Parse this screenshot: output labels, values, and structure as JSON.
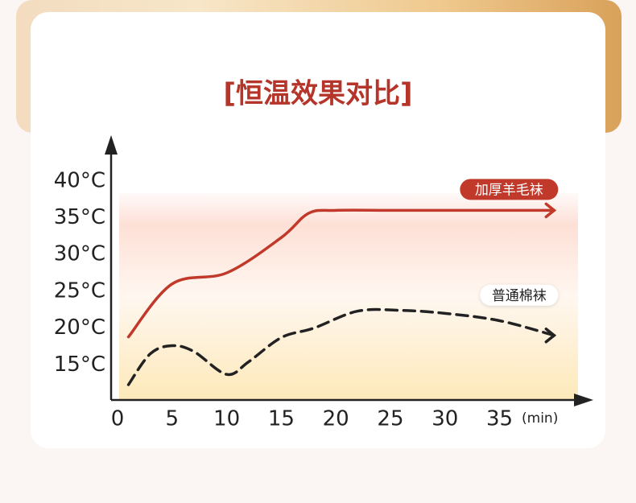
{
  "chart_data": {
    "type": "line",
    "title": "[恒温效果对比]",
    "x_unit": "(min)",
    "xlim": [
      0,
      43
    ],
    "xticks": [
      0,
      5,
      10,
      15,
      20,
      25,
      30,
      35
    ],
    "ylim": [
      10,
      46
    ],
    "yticks": [
      {
        "value": 15,
        "label": "15°C"
      },
      {
        "value": 20,
        "label": "20°C"
      },
      {
        "value": 25,
        "label": "25°C"
      },
      {
        "value": 30,
        "label": "30°C"
      },
      {
        "value": 35,
        "label": "35°C"
      },
      {
        "value": 40,
        "label": "40°C"
      }
    ],
    "series": [
      {
        "name": "加厚羊毛袜",
        "color": "#c0392b",
        "dashed": false,
        "x": [
          1,
          5,
          10,
          15,
          17.5,
          20,
          25,
          30,
          35,
          40
        ],
        "values": [
          18.8,
          26,
          27.5,
          32.3,
          35.6,
          36,
          36,
          36,
          36,
          36
        ]
      },
      {
        "name": "普通棉袜",
        "color": "#222222",
        "dashed": true,
        "x": [
          1,
          3,
          5,
          7,
          10,
          12,
          15,
          18,
          22,
          26,
          30,
          35,
          40
        ],
        "values": [
          12.3,
          16.5,
          17.6,
          16.8,
          13.7,
          15.4,
          18.7,
          20,
          22.3,
          22.4,
          22,
          21,
          19
        ]
      }
    ]
  }
}
